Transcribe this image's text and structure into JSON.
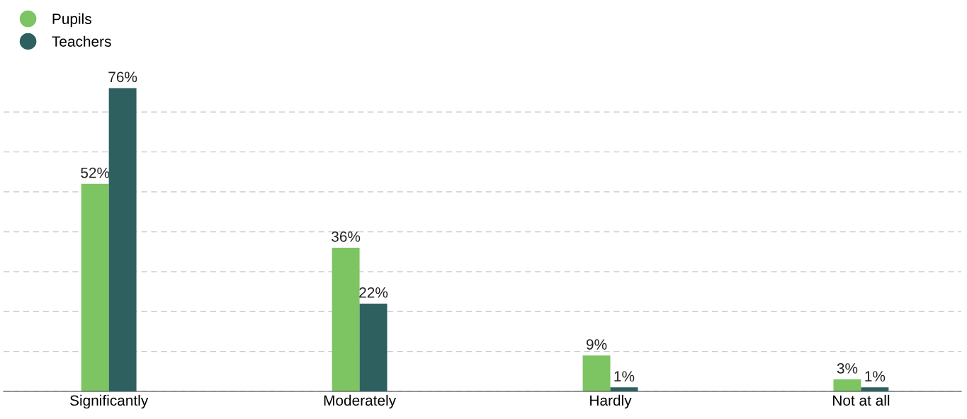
{
  "chart_data": {
    "type": "bar",
    "categories": [
      "Significantly",
      "Moderately",
      "Hardly",
      "Not at all"
    ],
    "series": [
      {
        "name": "Pupils",
        "color": "#7dc462",
        "values": [
          52,
          36,
          9,
          3
        ],
        "value_labels": [
          "52%",
          "36%",
          "9%",
          "3%"
        ]
      },
      {
        "name": "Teachers",
        "color": "#2e6060",
        "values": [
          76,
          22,
          1,
          1
        ],
        "value_labels": [
          "76%",
          "22%",
          "1%",
          "1%"
        ]
      }
    ],
    "grid": "y",
    "tick_labels": "x",
    "legend": "top left"
  }
}
